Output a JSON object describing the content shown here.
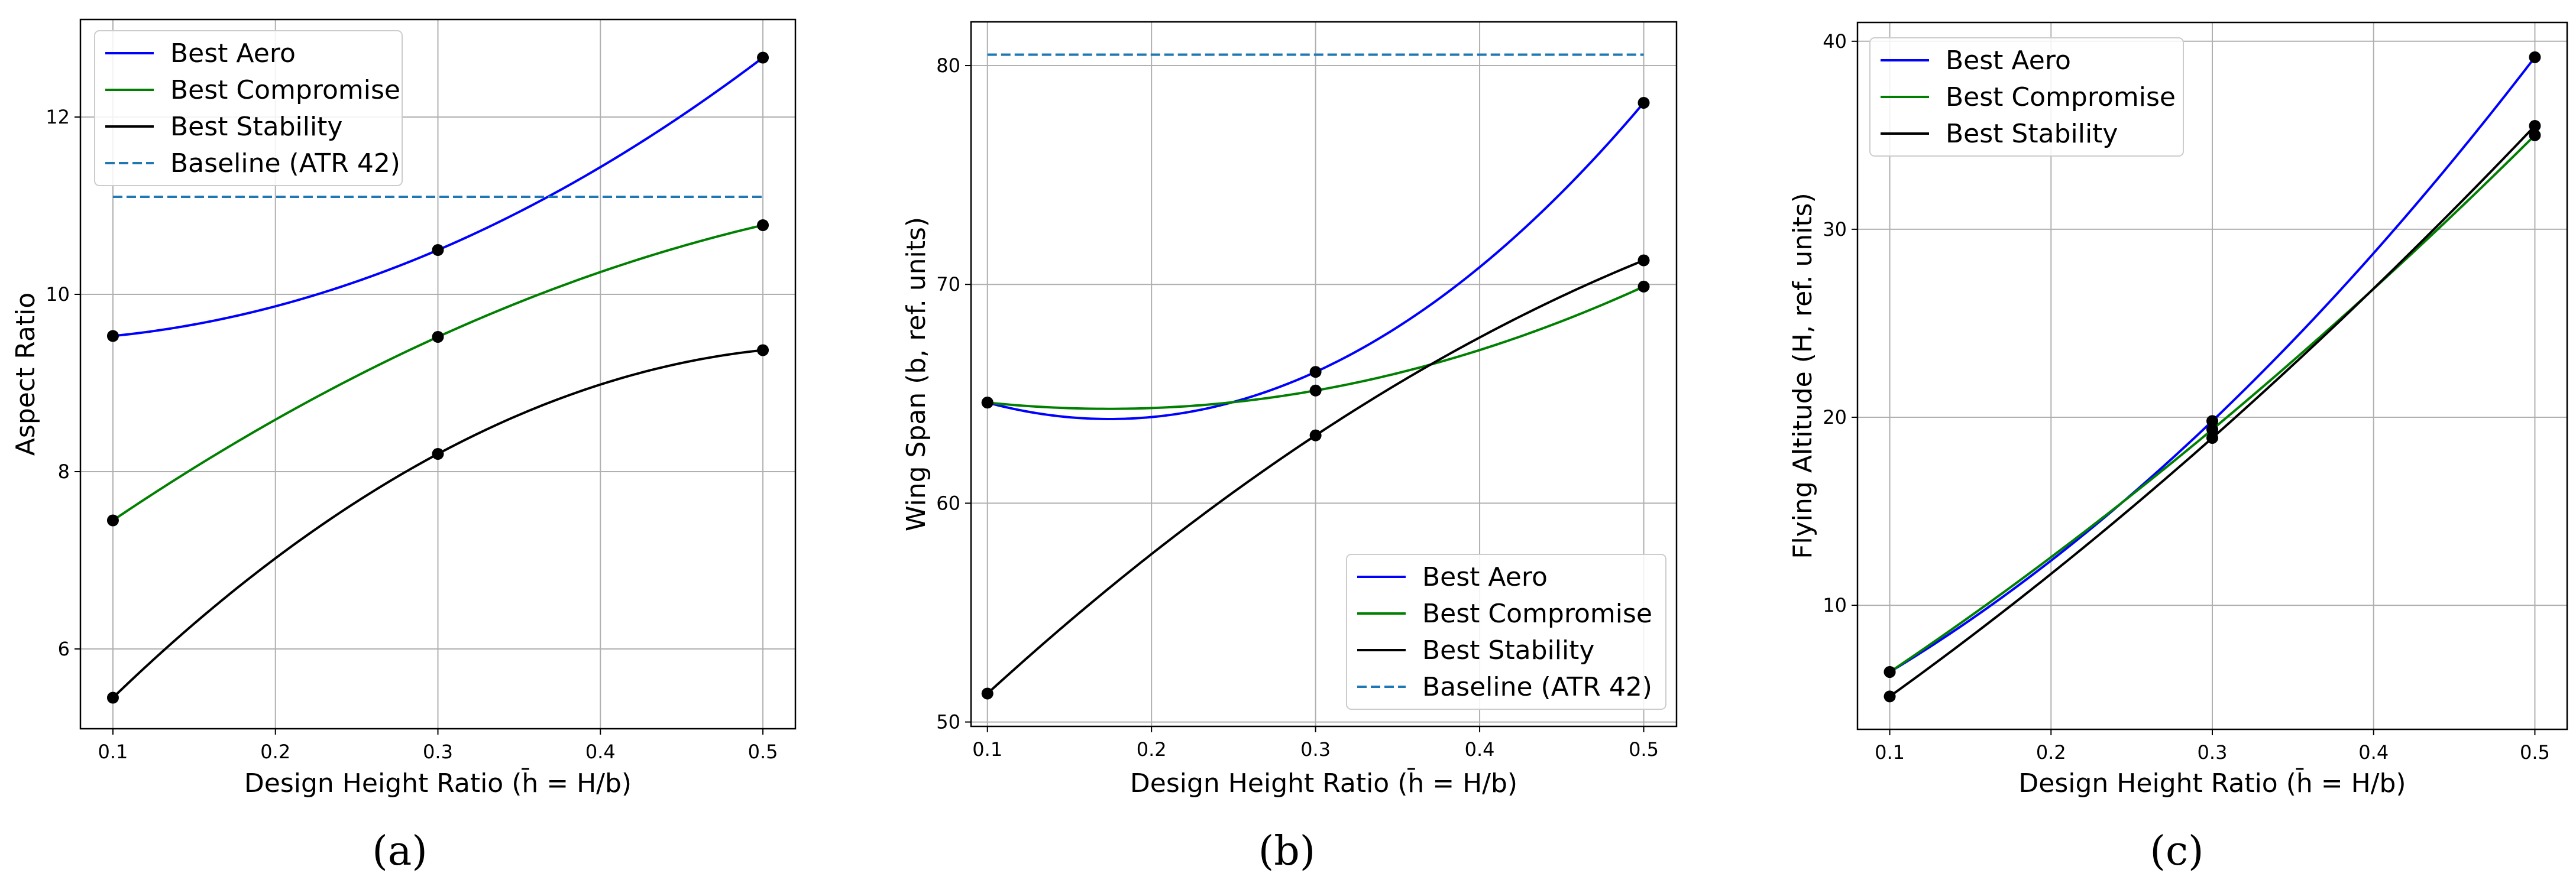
{
  "colors": {
    "best_aero": "#0000ff",
    "best_compromise": "#008000",
    "best_stability": "#000000",
    "baseline": "#1f77b4",
    "grid": "#b0b0b0",
    "marker": "#000000"
  },
  "chart_data": [
    {
      "type": "line",
      "panel_label": "(a)",
      "xlabel": "Design Height Ratio (h̄ = H/b)",
      "ylabel": "Aspect Ratio",
      "xlim": [
        0.08,
        0.52
      ],
      "ylim": [
        5.1,
        13.1
      ],
      "xticks": [
        0.1,
        0.2,
        0.3,
        0.4,
        0.5
      ],
      "xtick_labels": [
        "0.1",
        "0.2",
        "0.3",
        "0.4",
        "0.5"
      ],
      "yticks": [
        6,
        8,
        10,
        12
      ],
      "ytick_labels": [
        "6",
        "8",
        "10",
        "12"
      ],
      "grid": true,
      "legend_position": "upper-left",
      "x": [
        0.1,
        0.3,
        0.5
      ],
      "series": [
        {
          "name": "Best Aero",
          "style": "solid",
          "color_key": "best_aero",
          "values": [
            9.53,
            10.5,
            12.67
          ],
          "markers": true
        },
        {
          "name": "Best Compromise",
          "style": "solid",
          "color_key": "best_compromise",
          "values": [
            7.45,
            9.52,
            10.78
          ],
          "markers": true
        },
        {
          "name": "Best Stability",
          "style": "solid",
          "color_key": "best_stability",
          "values": [
            5.45,
            8.2,
            9.37
          ],
          "markers": true
        },
        {
          "name": "Baseline (ATR 42)",
          "style": "dashed",
          "color_key": "baseline",
          "constant": 11.1,
          "markers": false
        }
      ]
    },
    {
      "type": "line",
      "panel_label": "(b)",
      "xlabel": "Design Height Ratio (h̄ = H/b)",
      "ylabel": "Wing Span (b, ref. units)",
      "xlim": [
        0.09,
        0.52
      ],
      "ylim": [
        49.8,
        82.0
      ],
      "xticks": [
        0.1,
        0.2,
        0.3,
        0.4,
        0.5
      ],
      "xtick_labels": [
        "0.1",
        "0.2",
        "0.3",
        "0.4",
        "0.5"
      ],
      "yticks": [
        50,
        60,
        70,
        80
      ],
      "ytick_labels": [
        "50",
        "60",
        "70",
        "80"
      ],
      "grid": true,
      "legend_position": "lower-right",
      "x": [
        0.1,
        0.3,
        0.5
      ],
      "series": [
        {
          "name": "Best Aero",
          "style": "solid",
          "color_key": "best_aero",
          "values": [
            64.6,
            66.0,
            78.3
          ],
          "markers": true
        },
        {
          "name": "Best Compromise",
          "style": "solid",
          "color_key": "best_compromise",
          "values": [
            64.6,
            65.15,
            69.9
          ],
          "markers": true
        },
        {
          "name": "Best Stability",
          "style": "solid",
          "color_key": "best_stability",
          "values": [
            51.3,
            63.1,
            71.1
          ],
          "markers": true
        },
        {
          "name": "Baseline (ATR 42)",
          "style": "dashed",
          "color_key": "baseline",
          "constant": 80.5,
          "markers": false
        }
      ]
    },
    {
      "type": "line",
      "panel_label": "(c)",
      "xlabel": "Design Height Ratio (h̄ = H/b)",
      "ylabel": "Flying Altitude (H, ref. units)",
      "xlim": [
        0.08,
        0.52
      ],
      "ylim": [
        3.4,
        41.0
      ],
      "xticks": [
        0.1,
        0.2,
        0.3,
        0.4,
        0.5
      ],
      "xtick_labels": [
        "0.1",
        "0.2",
        "0.3",
        "0.4",
        "0.5"
      ],
      "yticks": [
        10,
        20,
        30,
        40
      ],
      "ytick_labels": [
        "10",
        "20",
        "30",
        "40"
      ],
      "grid": true,
      "legend_position": "upper-left",
      "x": [
        0.1,
        0.3,
        0.5
      ],
      "series": [
        {
          "name": "Best Aero",
          "style": "solid",
          "color_key": "best_aero",
          "values": [
            6.45,
            19.8,
            39.15
          ],
          "markers": true
        },
        {
          "name": "Best Compromise",
          "style": "solid",
          "color_key": "best_compromise",
          "values": [
            6.45,
            19.35,
            35.0
          ],
          "markers": true
        },
        {
          "name": "Best Stability",
          "style": "solid",
          "color_key": "best_stability",
          "values": [
            5.15,
            18.9,
            35.5
          ],
          "markers": true
        }
      ]
    }
  ]
}
